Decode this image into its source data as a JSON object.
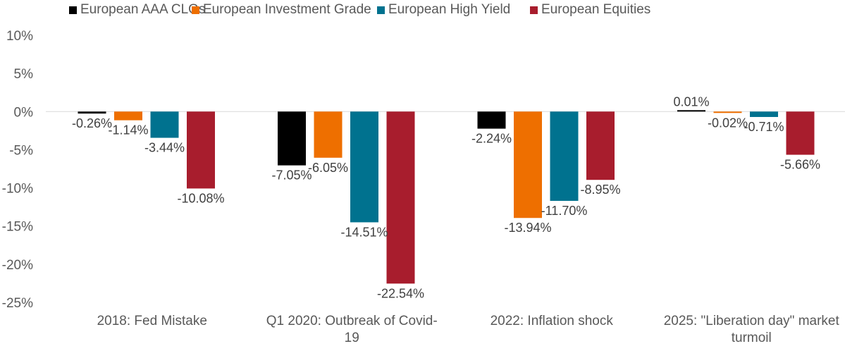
{
  "chart_data": {
    "type": "bar",
    "title": "",
    "xlabel": "",
    "ylabel": "",
    "ylim": [
      -25,
      10
    ],
    "yticks": [
      10,
      5,
      0,
      -5,
      -10,
      -15,
      -20,
      -25
    ],
    "ytick_labels": [
      "10%",
      "5%",
      "0%",
      "-5%",
      "-10%",
      "-15%",
      "-20%",
      "-25%"
    ],
    "grid": false,
    "legend_position": "top",
    "categories": [
      [
        "2018: Fed Mistake"
      ],
      [
        "Q1 2020: Outbreak of Covid-",
        "19"
      ],
      [
        "2022: Inflation shock"
      ],
      [
        "2025: \"Liberation day\" market",
        "turmoil"
      ]
    ],
    "series": [
      {
        "name": "European AAA CLOs",
        "color": "#000000",
        "values": [
          -0.26,
          -7.05,
          -2.24,
          0.01
        ],
        "labels": [
          "-0.26%",
          "-7.05%",
          "-2.24%",
          "0.01%"
        ]
      },
      {
        "name": "European Investment Grade",
        "color": "#EE6F00",
        "values": [
          -1.14,
          -6.05,
          -13.94,
          -0.02
        ],
        "labels": [
          "-1.14%",
          "-6.05%",
          "-13.94%",
          "-0.02%"
        ]
      },
      {
        "name": "European High Yield",
        "color": "#00728F",
        "values": [
          -3.44,
          -14.51,
          -11.7,
          -0.71
        ],
        "labels": [
          "-3.44%",
          "-14.51%",
          "-11.70%",
          "-0.71%"
        ]
      },
      {
        "name": "European Equities",
        "color": "#A81D2D",
        "values": [
          -10.08,
          -22.54,
          -8.95,
          -5.66
        ],
        "labels": [
          "-10.08%",
          "-22.54%",
          "-8.95%",
          "-5.66%"
        ]
      }
    ],
    "zero_line_color": "#D9D9D9"
  }
}
